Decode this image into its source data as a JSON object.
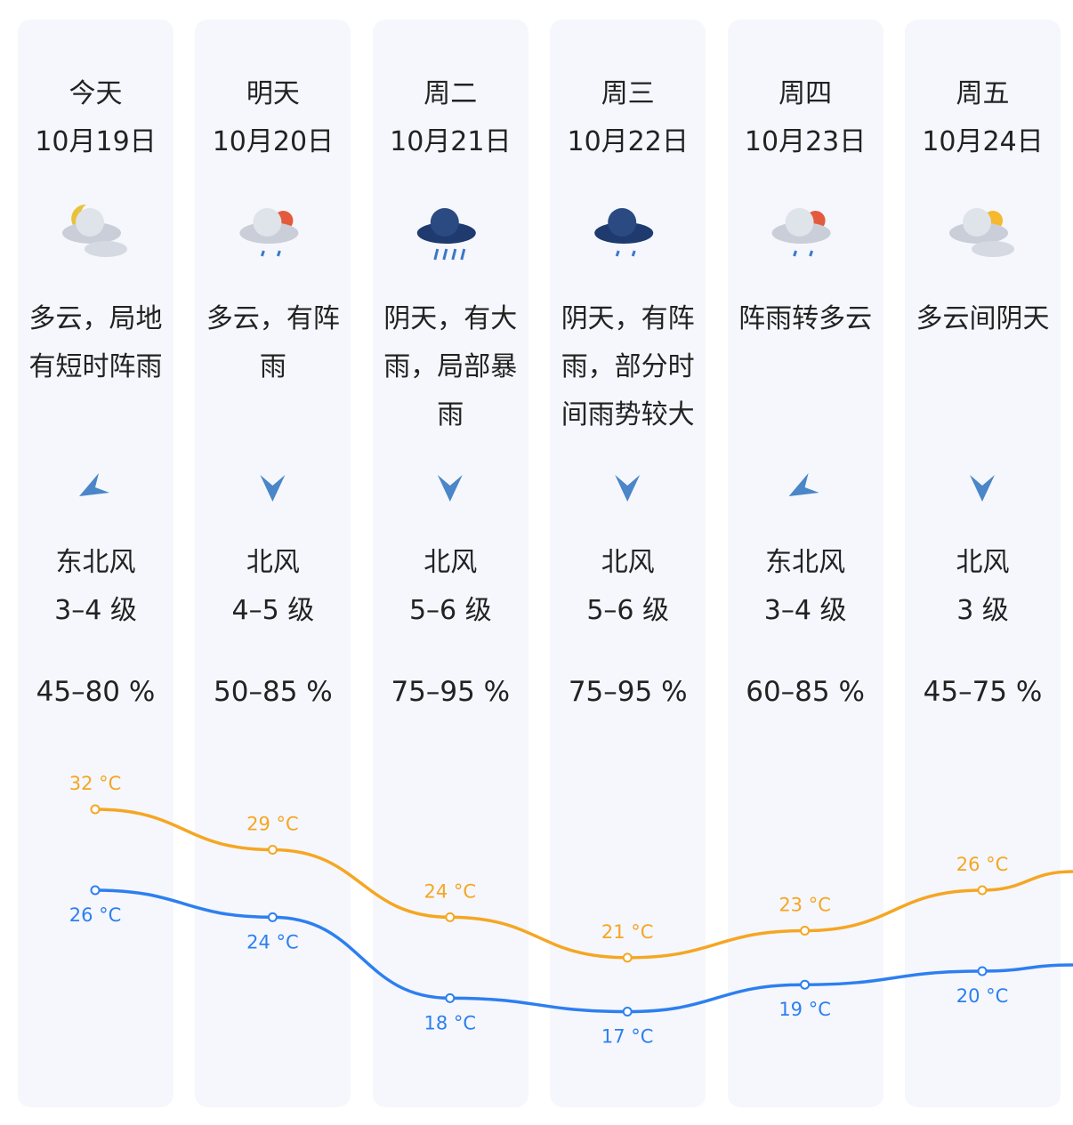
{
  "days": [
    {
      "name": "今天",
      "date": "10月19日",
      "weather": "多云，局地有短时阵雨",
      "wind_dir": "东北风",
      "wind_level": "3–4 级",
      "humidity": "45–80 %",
      "high": 32,
      "high_label": "32 °C",
      "low": 26,
      "low_label": "26 °C"
    },
    {
      "name": "明天",
      "date": "10月20日",
      "weather": "多云，有阵雨",
      "wind_dir": "北风",
      "wind_level": "4–5 级",
      "humidity": "50–85 %",
      "high": 29,
      "high_label": "29 °C",
      "low": 24,
      "low_label": "24 °C"
    },
    {
      "name": "周二",
      "date": "10月21日",
      "weather": "阴天，有大雨，局部暴雨",
      "wind_dir": "北风",
      "wind_level": "5–6 级",
      "humidity": "75–95 %",
      "high": 24,
      "high_label": "24 °C",
      "low": 18,
      "low_label": "18 °C"
    },
    {
      "name": "周三",
      "date": "10月22日",
      "weather": "阴天，有阵雨，部分时间雨势较大",
      "wind_dir": "北风",
      "wind_level": "5–6 级",
      "humidity": "75–95 %",
      "high": 21,
      "high_label": "21 °C",
      "low": 17,
      "low_label": "17 °C"
    },
    {
      "name": "周四",
      "date": "10月23日",
      "weather": "阵雨转多云",
      "wind_dir": "东北风",
      "wind_level": "3–4 级",
      "humidity": "60–85 %",
      "high": 23,
      "high_label": "23 °C",
      "low": 19,
      "low_label": "19 °C"
    },
    {
      "name": "周五",
      "date": "10月24日",
      "weather": "多云间阴天",
      "wind_dir": "北风",
      "wind_level": "3 级",
      "humidity": "45–75 %",
      "high": 26,
      "high_label": "26 °C",
      "low": 20,
      "low_label": "20 °C"
    }
  ]
}
